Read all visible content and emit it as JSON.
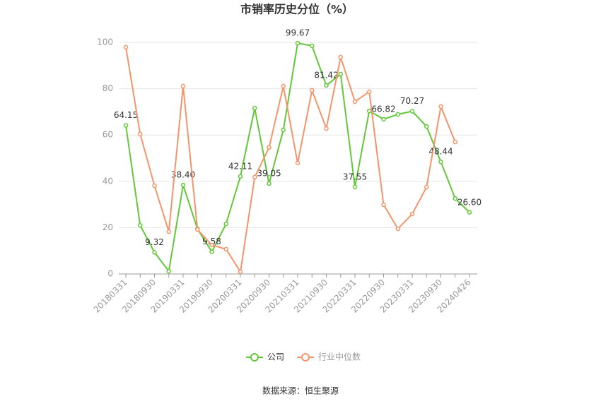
{
  "chart_data": {
    "type": "line",
    "title": "市销率历史分位（%）",
    "source": "数据来源：恒生聚源",
    "categories": [
      "20180331",
      null,
      "20180930",
      null,
      "20190331",
      null,
      "20190930",
      null,
      "20200331",
      null,
      "20200930",
      null,
      "20210331",
      null,
      "20210930",
      null,
      "20220331",
      null,
      "20220930",
      null,
      "20230331",
      null,
      "20230930",
      null,
      "20240426"
    ],
    "series": [
      {
        "name": "公司",
        "color": "#63c73a",
        "values": [
          64.15,
          21,
          9.32,
          1.2,
          38.4,
          19.5,
          9.58,
          21.6,
          42.11,
          71.6,
          39.05,
          62.2,
          99.67,
          98.5,
          81.42,
          86.3,
          37.55,
          70.4,
          66.82,
          68.9,
          70.27,
          63.7,
          48.44,
          32.6,
          26.6
        ],
        "value_labels": [
          "64.15",
          null,
          "9.32",
          null,
          "38.40",
          null,
          "9.58",
          null,
          "42.11",
          null,
          "39.05",
          null,
          "99.67",
          null,
          "81.42",
          null,
          "37.55",
          null,
          "66.82",
          null,
          "70.27",
          null,
          "48.44",
          null,
          "26.60"
        ]
      },
      {
        "name": "行业中位数",
        "color": "#f4946a",
        "values": [
          97.9,
          60.4,
          38.1,
          18.3,
          81.1,
          19.2,
          12.5,
          10.7,
          0.9,
          41.8,
          54.6,
          81.1,
          47.9,
          79.3,
          62.8,
          93.6,
          74.4,
          78.7,
          29.9,
          19.5,
          25.9,
          37.5,
          72.3,
          57.0,
          null
        ]
      }
    ],
    "ylim": [
      0,
      100
    ],
    "yticks": [
      0,
      20,
      40,
      60,
      80,
      100
    ],
    "grid": true
  }
}
